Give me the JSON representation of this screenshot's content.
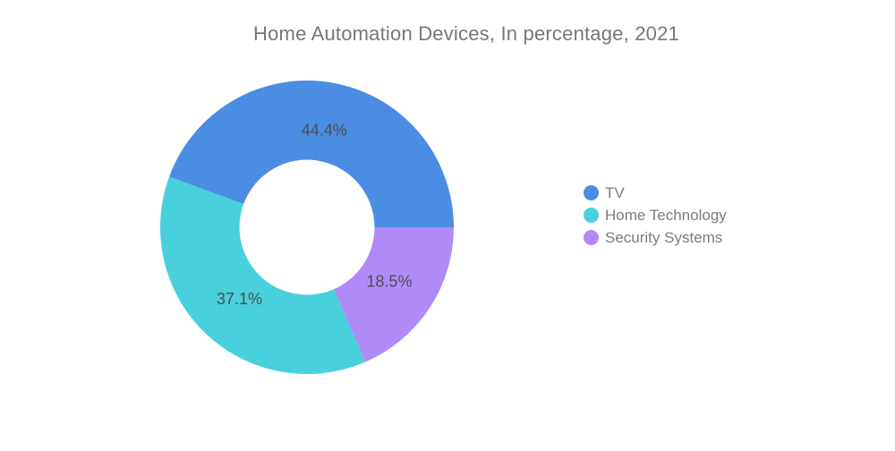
{
  "chart_data": {
    "type": "pie",
    "subtype": "donut",
    "title": "Home Automation Devices, In percentage, 2021",
    "categories": [
      "TV",
      "Home Technology",
      "Security Systems"
    ],
    "values": [
      44.4,
      37.1,
      18.5
    ],
    "labels": [
      "44.4%",
      "37.1%",
      "18.5%"
    ],
    "colors": [
      "#4a8de2",
      "#48d0dc",
      "#b08bf8"
    ],
    "start_angle_deg": 0,
    "direction": "counterclockwise",
    "inner_radius_ratio": 0.46,
    "label_color": "#4d4e53",
    "title_color": "#77777a",
    "legend": {
      "position": "right",
      "text_color": "#7b7c80"
    }
  }
}
